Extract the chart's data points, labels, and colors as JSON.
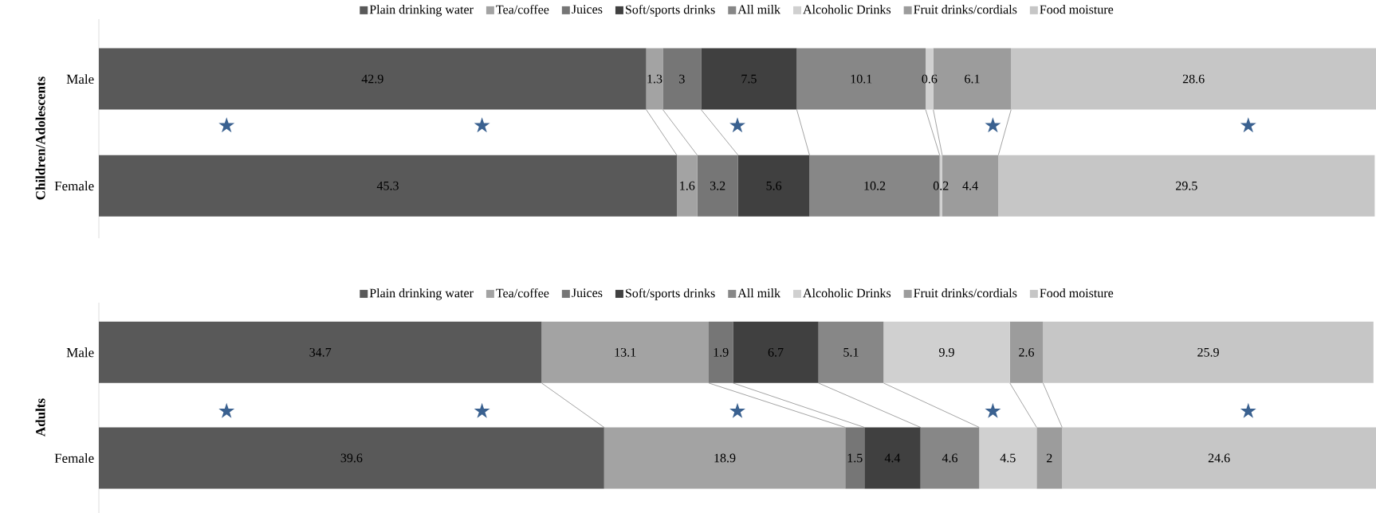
{
  "chart_data": [
    {
      "type": "bar",
      "orientation": "horizontal",
      "stacked": true,
      "ylabel": "Children/Adolescents",
      "categories": [
        "Male",
        "Female"
      ],
      "tick_labels": "y",
      "legend": "top",
      "data_labels": true,
      "series": [
        {
          "name": "Plain drinking water",
          "color": "#595959",
          "values": [
            42.9,
            45.3
          ]
        },
        {
          "name": "Tea/coffee",
          "color": "#a3a3a3",
          "values": [
            1.3,
            1.6
          ]
        },
        {
          "name": "Juices",
          "color": "#767676",
          "values": [
            3,
            3.2
          ]
        },
        {
          "name": "Soft/sports drinks",
          "color": "#404040",
          "values": [
            7.5,
            5.6
          ]
        },
        {
          "name": "All milk",
          "color": "#878787",
          "values": [
            10.1,
            10.2
          ]
        },
        {
          "name": "Alcoholic Drinks",
          "color": "#d0d0d0",
          "values": [
            0.6,
            0.2
          ]
        },
        {
          "name": "Fruit drinks/cordials",
          "color": "#9c9c9c",
          "values": [
            6.1,
            4.4
          ]
        },
        {
          "name": "Food moisture",
          "color": "#c6c6c6",
          "values": [
            28.6,
            29.5
          ]
        }
      ],
      "annotations": [
        "★",
        "★",
        "★",
        "★",
        "★"
      ]
    },
    {
      "type": "bar",
      "orientation": "horizontal",
      "stacked": true,
      "ylabel": "Adults",
      "categories": [
        "Male",
        "Female"
      ],
      "tick_labels": "y",
      "legend": "top",
      "data_labels": true,
      "series": [
        {
          "name": "Plain drinking water",
          "color": "#595959",
          "values": [
            34.7,
            39.6
          ]
        },
        {
          "name": "Tea/coffee",
          "color": "#a3a3a3",
          "values": [
            13.1,
            18.9
          ]
        },
        {
          "name": "Juices",
          "color": "#767676",
          "values": [
            1.9,
            1.5
          ]
        },
        {
          "name": "Soft/sports drinks",
          "color": "#404040",
          "values": [
            6.7,
            4.4
          ]
        },
        {
          "name": "All milk",
          "color": "#878787",
          "values": [
            5.1,
            4.6
          ]
        },
        {
          "name": "Alcoholic Drinks",
          "color": "#d0d0d0",
          "values": [
            9.9,
            4.5
          ]
        },
        {
          "name": "Fruit drinks/cordials",
          "color": "#9c9c9c",
          "values": [
            2.6,
            2
          ]
        },
        {
          "name": "Food moisture",
          "color": "#c6c6c6",
          "values": [
            25.9,
            24.6
          ]
        }
      ],
      "annotations": [
        "★",
        "★",
        "★",
        "★",
        "★"
      ]
    }
  ]
}
